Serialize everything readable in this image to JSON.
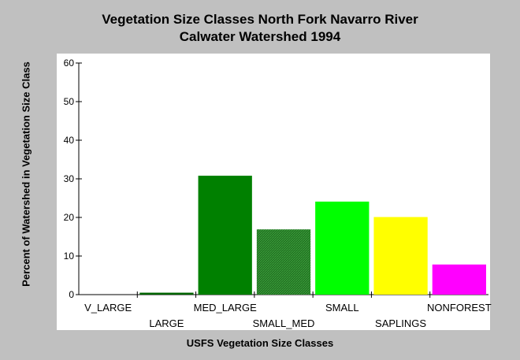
{
  "chart_data": {
    "type": "bar",
    "title_lines": [
      "Vegetation Size Classes North Fork Navarro River",
      "Calwater Watershed 1994"
    ],
    "xlabel": "USFS Vegetation Size Classes",
    "ylabel": "Percent of Watershed in Vegetation Size Class",
    "categories": [
      "V_LARGE",
      "LARGE",
      "MED_LARGE",
      "SMALL_MED",
      "SMALL",
      "SAPLINGS",
      "NONFOREST"
    ],
    "values": [
      0,
      0.5,
      30.8,
      16.9,
      24.1,
      20.1,
      7.8
    ],
    "colors": [
      "#006400",
      "#006400",
      "#008000",
      "#2e7d2e",
      "#00ff00",
      "#ffff00",
      "#ff00ff"
    ],
    "hatched": [
      false,
      false,
      false,
      true,
      false,
      false,
      false
    ],
    "ylim": [
      0,
      60
    ],
    "yticks": [
      0,
      10,
      20,
      30,
      40,
      50,
      60
    ],
    "grid": false
  }
}
